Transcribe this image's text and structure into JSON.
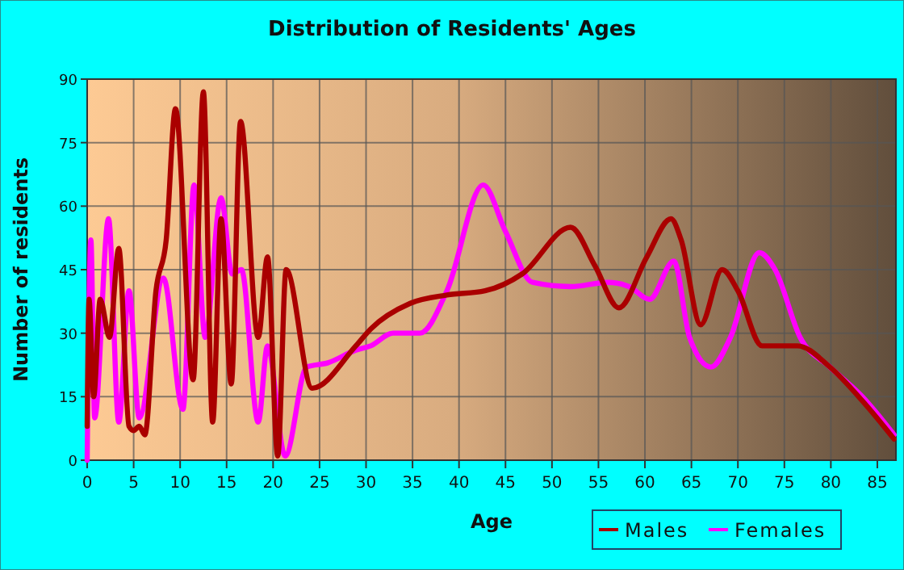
{
  "chart_data": {
    "type": "line",
    "title": "Distribution of Residents' Ages",
    "xlabel": "Age",
    "ylabel": "Number of residents",
    "xlim": [
      0,
      87
    ],
    "xticks": [
      0,
      5,
      10,
      15,
      20,
      25,
      30,
      35,
      40,
      45,
      50,
      55,
      60,
      65,
      70,
      75,
      80,
      85
    ],
    "ylim": [
      0,
      90
    ],
    "yticks": [
      0,
      15,
      30,
      45,
      60,
      75,
      90
    ],
    "grid": true,
    "legend": "bottom right",
    "series": [
      {
        "name": "Males",
        "color": "#aa0000",
        "x": [
          0,
          0.2,
          0.7,
          1.4,
          2.4,
          3.4,
          4.5,
          5,
          5.6,
          6.2,
          7.4,
          8.5,
          9.5,
          11.4,
          12.5,
          13.5,
          14.4,
          15.5,
          16.5,
          18.4,
          19.4,
          20.5,
          21.4,
          24.2,
          28.9,
          30.5,
          34.7,
          38.7,
          42.8,
          46.8,
          52,
          54.6,
          57.2,
          60.2,
          62.8,
          63.9,
          66,
          68.3,
          70,
          72.6,
          76.4,
          79.9,
          83.4,
          86.8
        ],
        "values": [
          8,
          38,
          15,
          38,
          29,
          50,
          8,
          7,
          8,
          6,
          40,
          52,
          83,
          19,
          87,
          9,
          57,
          18,
          80,
          29,
          48,
          1,
          45,
          17,
          27,
          31,
          37,
          39,
          40,
          44,
          55,
          46,
          36,
          48,
          57,
          52,
          32,
          45,
          40,
          27,
          27,
          22,
          14,
          5
        ]
      },
      {
        "name": "Females",
        "color": "#ff00ff",
        "x": [
          0,
          0.4,
          0.8,
          2.3,
          3.4,
          4.5,
          5.6,
          8.2,
          10.3,
          11.5,
          12.7,
          14.4,
          15.6,
          16.6,
          18.4,
          19.4,
          21.3,
          23.6,
          25.9,
          28.9,
          30.5,
          32.9,
          35.8,
          38.7,
          42.6,
          45,
          47.9,
          52,
          56,
          58.3,
          60.5,
          63.1,
          64.8,
          67.1,
          69.2,
          72.3,
          74,
          76.7,
          79.9,
          83.4,
          86.8
        ],
        "values": [
          0,
          52,
          10,
          57,
          9,
          40,
          10,
          43,
          12,
          65,
          29,
          62,
          44,
          45,
          9,
          27,
          1,
          22,
          23,
          26,
          27,
          30,
          30,
          40,
          65,
          54,
          42,
          41,
          42,
          41,
          38,
          47,
          29,
          22,
          29,
          49,
          45,
          29,
          22,
          15,
          6
        ]
      }
    ]
  }
}
